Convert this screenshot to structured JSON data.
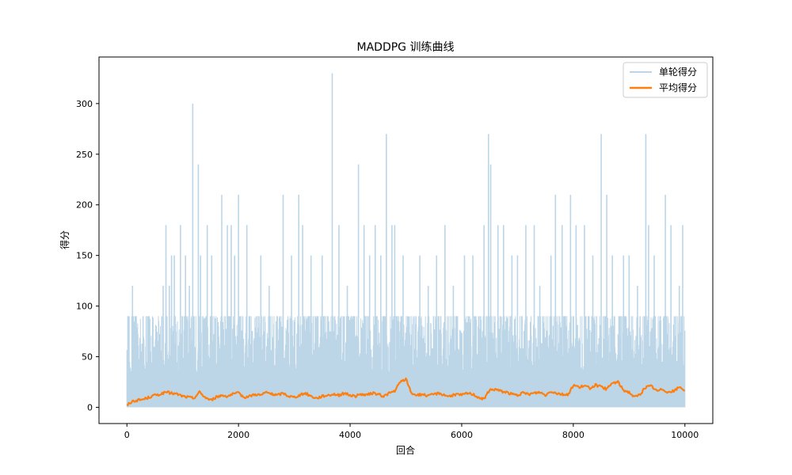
{
  "chart_data": {
    "type": "line",
    "title": "MADDPG 训练曲线",
    "xlabel": "回合",
    "ylabel": "得分",
    "xlim": [
      -500,
      10500
    ],
    "ylim": [
      -16,
      346
    ],
    "xticks": [
      0,
      2000,
      4000,
      6000,
      8000,
      10000
    ],
    "yticks": [
      0,
      50,
      100,
      150,
      200,
      250,
      300
    ],
    "grid": false,
    "legend_position": "top-right",
    "series": [
      {
        "name": "单轮得分",
        "color": "#bcd6e8",
        "kind": "raw",
        "x_range": [
          0,
          10000
        ],
        "baseline": 0,
        "typical_high": 90,
        "peaks": [
          [
            20,
            60
          ],
          [
            100,
            120
          ],
          [
            150,
            90
          ],
          [
            650,
            120
          ],
          [
            700,
            180
          ],
          [
            760,
            120
          ],
          [
            800,
            150
          ],
          [
            850,
            150
          ],
          [
            960,
            180
          ],
          [
            1050,
            150
          ],
          [
            1120,
            120
          ],
          [
            1180,
            300
          ],
          [
            1280,
            240
          ],
          [
            1320,
            150
          ],
          [
            1440,
            180
          ],
          [
            1520,
            150
          ],
          [
            1700,
            210
          ],
          [
            1800,
            180
          ],
          [
            1870,
            180
          ],
          [
            1930,
            150
          ],
          [
            2000,
            210
          ],
          [
            2150,
            180
          ],
          [
            2400,
            150
          ],
          [
            2550,
            120
          ],
          [
            2800,
            210
          ],
          [
            2950,
            150
          ],
          [
            3080,
            210
          ],
          [
            3150,
            180
          ],
          [
            3300,
            150
          ],
          [
            3500,
            150
          ],
          [
            3680,
            330
          ],
          [
            3800,
            180
          ],
          [
            3950,
            120
          ],
          [
            4150,
            240
          ],
          [
            4250,
            180
          ],
          [
            4350,
            150
          ],
          [
            4450,
            180
          ],
          [
            4550,
            150
          ],
          [
            4650,
            270
          ],
          [
            4750,
            180
          ],
          [
            4800,
            180
          ],
          [
            4950,
            150
          ],
          [
            5250,
            150
          ],
          [
            5400,
            120
          ],
          [
            5550,
            150
          ],
          [
            5700,
            180
          ],
          [
            5850,
            120
          ],
          [
            6050,
            150
          ],
          [
            6200,
            150
          ],
          [
            6400,
            180
          ],
          [
            6480,
            270
          ],
          [
            6520,
            240
          ],
          [
            6650,
            180
          ],
          [
            6750,
            180
          ],
          [
            6900,
            150
          ],
          [
            7000,
            150
          ],
          [
            7150,
            180
          ],
          [
            7300,
            180
          ],
          [
            7400,
            120
          ],
          [
            7600,
            150
          ],
          [
            7680,
            210
          ],
          [
            7800,
            180
          ],
          [
            7950,
            210
          ],
          [
            8050,
            180
          ],
          [
            8200,
            180
          ],
          [
            8350,
            150
          ],
          [
            8500,
            270
          ],
          [
            8600,
            210
          ],
          [
            8700,
            150
          ],
          [
            8900,
            150
          ],
          [
            9000,
            150
          ],
          [
            9150,
            120
          ],
          [
            9300,
            270
          ],
          [
            9350,
            180
          ],
          [
            9450,
            150
          ],
          [
            9650,
            210
          ],
          [
            9750,
            180
          ],
          [
            9900,
            120
          ],
          [
            9960,
            180
          ]
        ]
      },
      {
        "name": "平均得分",
        "color": "#ff7f0e",
        "kind": "smoothed",
        "x": [
          0,
          100,
          200,
          300,
          400,
          500,
          600,
          700,
          800,
          900,
          1000,
          1100,
          1200,
          1300,
          1400,
          1500,
          1600,
          1700,
          1800,
          1900,
          2000,
          2100,
          2200,
          2300,
          2400,
          2500,
          2600,
          2700,
          2800,
          2900,
          3000,
          3100,
          3200,
          3300,
          3400,
          3500,
          3600,
          3700,
          3800,
          3900,
          4000,
          4100,
          4200,
          4300,
          4400,
          4500,
          4600,
          4700,
          4800,
          4900,
          5000,
          5100,
          5200,
          5300,
          5400,
          5500,
          5600,
          5700,
          5800,
          5900,
          6000,
          6100,
          6200,
          6300,
          6400,
          6500,
          6600,
          6700,
          6800,
          6900,
          7000,
          7100,
          7200,
          7300,
          7400,
          7500,
          7600,
          7700,
          7800,
          7900,
          8000,
          8100,
          8200,
          8300,
          8400,
          8500,
          8600,
          8700,
          8800,
          8900,
          9000,
          9100,
          9200,
          9300,
          9400,
          9500,
          9600,
          9700,
          9800,
          9900,
          10000
        ],
        "values": [
          2,
          6,
          7,
          8,
          10,
          12,
          13,
          15,
          14,
          13,
          11,
          10,
          9,
          15,
          10,
          7,
          10,
          12,
          11,
          13,
          14,
          10,
          11,
          13,
          12,
          15,
          13,
          12,
          14,
          11,
          10,
          12,
          14,
          11,
          9,
          11,
          12,
          13,
          12,
          14,
          12,
          11,
          13,
          12,
          14,
          13,
          11,
          14,
          16,
          25,
          28,
          14,
          12,
          13,
          11,
          13,
          14,
          12,
          11,
          13,
          12,
          14,
          13,
          10,
          8,
          17,
          18,
          16,
          15,
          13,
          12,
          14,
          13,
          14,
          15,
          12,
          16,
          14,
          13,
          12,
          22,
          20,
          21,
          19,
          22,
          20,
          18,
          24,
          25,
          17,
          15,
          10,
          13,
          20,
          21,
          16,
          18,
          15,
          16,
          20,
          17
        ]
      }
    ]
  }
}
